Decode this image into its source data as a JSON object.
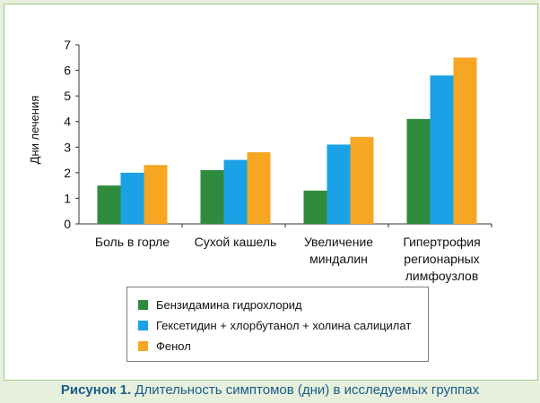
{
  "caption": {
    "label": "Рисунок 1.",
    "text": "Длительность симптомов (дни) в исследуемых группах"
  },
  "chart_data": {
    "type": "bar",
    "ylabel": "Дни лечения",
    "xlabel": "",
    "ylim": [
      0,
      7
    ],
    "yticks": [
      0,
      1,
      2,
      3,
      4,
      5,
      6,
      7
    ],
    "grid": false,
    "legend_position": "bottom",
    "categories": [
      [
        "Боль в горле"
      ],
      [
        "Сухой кашель"
      ],
      [
        "Увеличение",
        "миндалин"
      ],
      [
        "Гипертрофия",
        "регионарных",
        "лимфоузлов"
      ]
    ],
    "series": [
      {
        "name": "Бензидамина гидрохлорид",
        "color": "#2e8b3d",
        "values": [
          1.5,
          2.1,
          1.3,
          4.1
        ]
      },
      {
        "name": "Гекcетидин + хлорбутанол + холина салицилат",
        "color": "#1aa1e6",
        "values": [
          2.0,
          2.5,
          3.1,
          5.8
        ]
      },
      {
        "name": "Фенол",
        "color": "#f6a623",
        "values": [
          2.3,
          2.8,
          3.4,
          6.5
        ]
      }
    ]
  }
}
